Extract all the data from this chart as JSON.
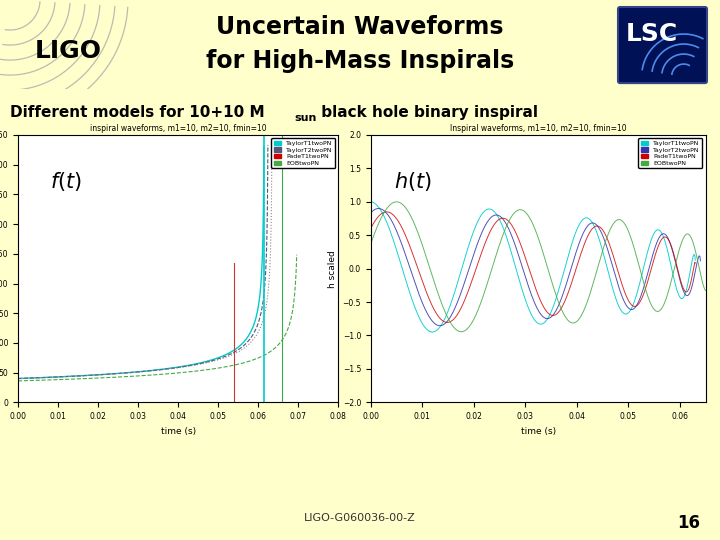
{
  "title_line1": "Uncertain Waveforms",
  "title_line2": "for High-Mass Inspirals",
  "subtitle": "Different models for 10+10 M",
  "subtitle_sun": "sun",
  "subtitle_rest": " black hole binary inspiral",
  "footer": "LIGO-G060036-00-Z",
  "page_number": "16",
  "bg_color": "#ffffcc",
  "divider_color": "#2222bb",
  "title_color": "#000000",
  "plot1_title": "inspiral waveforms, m1=10, m2=10, fmin=10",
  "plot2_title": "Inspiral waveforms, m1=10, m2=10, fmin=10",
  "legend1": [
    "TaylorT1twoPN",
    "TaylorT2twoPN",
    "PadeT1twoPN",
    "EOBtwoPN"
  ],
  "legend2": [
    "TaylorT1twoPN",
    "TaylorT2twoPN",
    "PadeT1twoPN",
    "EOBtwoPN"
  ],
  "plot_colors": [
    "#00cccc",
    "#3333aa",
    "#cc0000",
    "#44aa44"
  ],
  "plot_bg": "#ffffff",
  "lsc_bg": "#001155"
}
